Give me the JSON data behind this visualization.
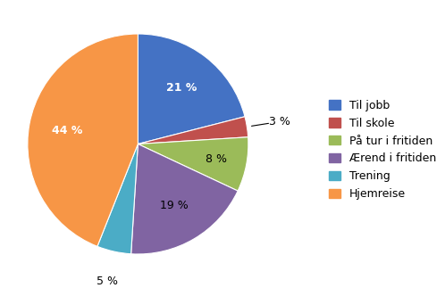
{
  "labels": [
    "Til jobb",
    "Til skole",
    "På tur i fritiden",
    "Ærend i fritiden",
    "Trening",
    "Hjemreise"
  ],
  "values": [
    21,
    3,
    8,
    19,
    5,
    44
  ],
  "colors": [
    "#4472C4",
    "#C0504D",
    "#9BBB59",
    "#8064A2",
    "#4BACC6",
    "#F79646"
  ],
  "startangle": 90,
  "title_fontsize": 15,
  "legend_fontsize": 9,
  "pct_inside_color": [
    "white",
    "black",
    "black",
    "black",
    "black",
    "black"
  ],
  "pct_outside": [
    false,
    true,
    false,
    false,
    true,
    false
  ]
}
